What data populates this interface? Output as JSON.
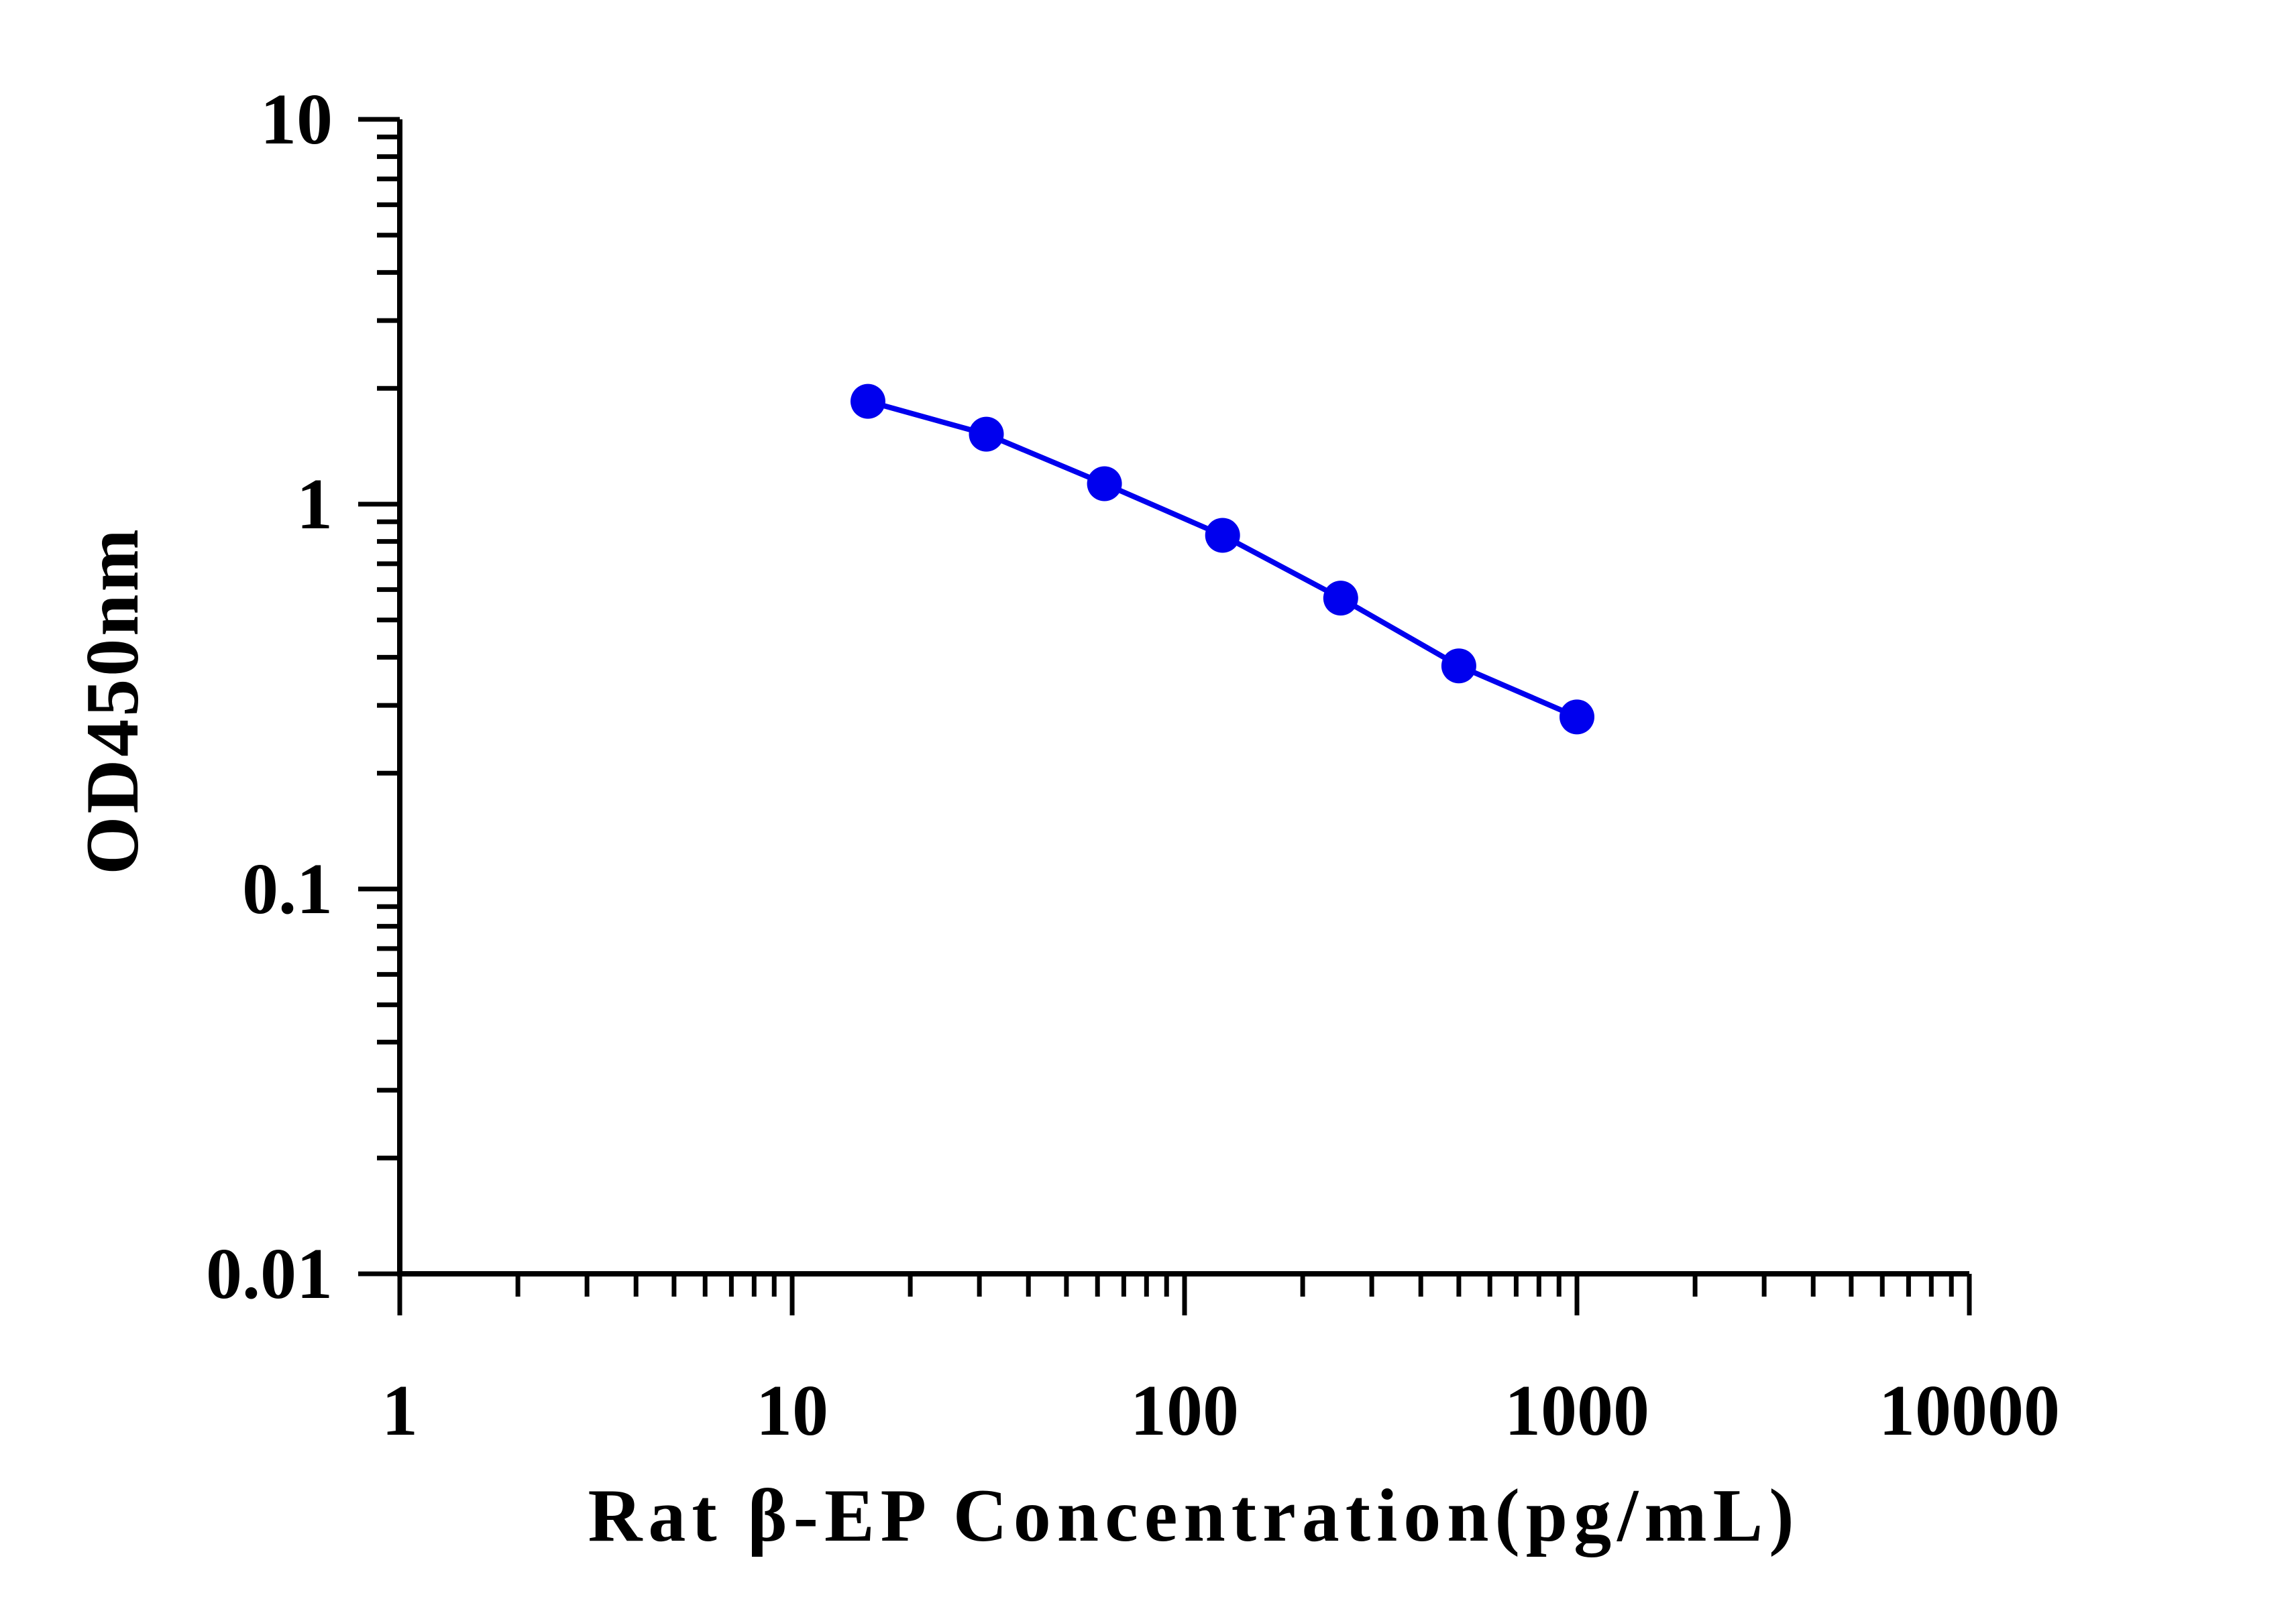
{
  "chart_data": {
    "type": "scatter",
    "title": "",
    "xlabel": "Rat β-EP Concentration(pg/mL)",
    "ylabel": "OD450nm",
    "x_scale": "log",
    "y_scale": "log",
    "xlim": [
      1,
      10000
    ],
    "ylim": [
      0.01,
      10
    ],
    "x_tick_labels": [
      "1",
      "10",
      "100",
      "1000",
      "10000"
    ],
    "y_tick_labels": [
      "0.01",
      "0.1",
      "1",
      "10"
    ],
    "grid": false,
    "legend": "none",
    "series": [
      {
        "x": [
          15.6,
          31.25,
          62.5,
          125,
          250,
          500,
          1000
        ],
        "y": [
          1.85,
          1.52,
          1.13,
          0.83,
          0.57,
          0.38,
          0.28
        ],
        "color": "#0000ee",
        "marker": "circle",
        "line": true
      }
    ]
  }
}
